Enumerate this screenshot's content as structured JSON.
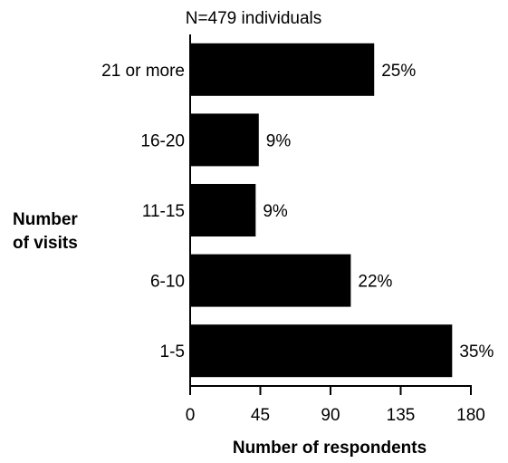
{
  "chart_data": {
    "type": "bar",
    "orientation": "horizontal",
    "title": "N=479 individuals",
    "xlabel": "Number of respondents",
    "ylabel": [
      "Number",
      "of visits"
    ],
    "categories": [
      "21 or more",
      "16-20",
      "11-15",
      "6-10",
      "1-5"
    ],
    "values": [
      118,
      44,
      42,
      103,
      168
    ],
    "data_labels": [
      "25%",
      "9%",
      "9%",
      "22%",
      "35%"
    ],
    "xlim": [
      0,
      180
    ],
    "xticks": [
      0,
      45,
      90,
      135,
      180
    ],
    "grid": false,
    "legend": "none",
    "bar_color": "#000000"
  }
}
